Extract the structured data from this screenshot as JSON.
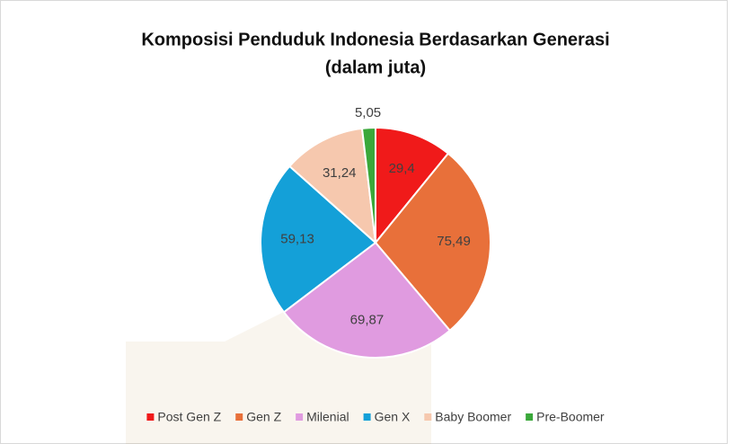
{
  "chart_data": {
    "type": "pie",
    "title": "Komposisi Penduduk Indonesia Berdasarkan Generasi",
    "subtitle": "(dalam juta)",
    "categories": [
      "Post Gen Z",
      "Gen Z",
      "Milenial",
      "Gen X",
      "Baby Boomer",
      "Pre-Boomer"
    ],
    "values": [
      29.4,
      75.49,
      69.87,
      59.13,
      31.24,
      5.05
    ],
    "value_labels": [
      "29,4",
      "75,49",
      "69,87",
      "59,13",
      "31,24",
      "5,05"
    ],
    "colors": [
      "#f01a1a",
      "#e8703a",
      "#e09be0",
      "#14a0d8",
      "#f6c8ae",
      "#3aa83a"
    ],
    "legend": "bottom"
  }
}
